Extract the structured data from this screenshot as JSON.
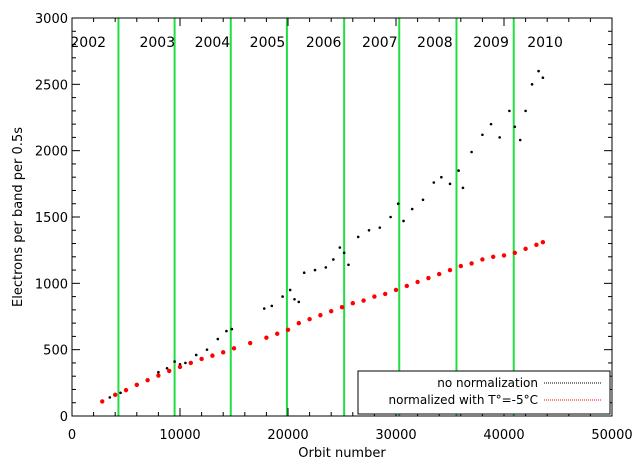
{
  "chart_data": {
    "type": "scatter",
    "xlabel": "Orbit number",
    "ylabel": "Electrons per band per 0.5s",
    "xlim": [
      0,
      50000
    ],
    "ylim": [
      0,
      3000
    ],
    "x_ticks": [
      0,
      10000,
      20000,
      30000,
      40000,
      50000
    ],
    "y_ticks": [
      0,
      500,
      1000,
      1500,
      2000,
      2500,
      3000
    ],
    "x_tick_labels": [
      "0",
      "10000",
      "20000",
      "30000",
      "40000",
      "50000"
    ],
    "y_tick_labels": [
      "0",
      "500",
      "1000",
      "1500",
      "2000",
      "2500",
      "3000"
    ],
    "grid": false,
    "legend_position": "bottom-right",
    "year_boundaries": [
      4300,
      9500,
      14700,
      19900,
      25200,
      30300,
      35600,
      40900
    ],
    "year_line_color": "#22dd44",
    "year_labels": [
      {
        "label": "2002",
        "x": 1500
      },
      {
        "label": "2003",
        "x": 7900
      },
      {
        "label": "2004",
        "x": 13000
      },
      {
        "label": "2005",
        "x": 18100
      },
      {
        "label": "2006",
        "x": 23300
      },
      {
        "label": "2007",
        "x": 28500
      },
      {
        "label": "2008",
        "x": 33600
      },
      {
        "label": "2009",
        "x": 38800
      },
      {
        "label": "2010",
        "x": 43800
      }
    ],
    "series": [
      {
        "name": "no normalization",
        "color": "#000000",
        "marker": "dot",
        "points": [
          [
            2800,
            110
          ],
          [
            3500,
            140
          ],
          [
            4000,
            165
          ],
          [
            4500,
            175
          ],
          [
            5000,
            190
          ],
          [
            6000,
            230
          ],
          [
            7000,
            270
          ],
          [
            8000,
            330
          ],
          [
            8800,
            360
          ],
          [
            9500,
            410
          ],
          [
            10000,
            390
          ],
          [
            10500,
            400
          ],
          [
            11500,
            460
          ],
          [
            12500,
            500
          ],
          [
            13500,
            580
          ],
          [
            14300,
            640
          ],
          [
            14800,
            655
          ],
          [
            17800,
            810
          ],
          [
            18500,
            830
          ],
          [
            19500,
            900
          ],
          [
            20200,
            950
          ],
          [
            20600,
            880
          ],
          [
            21000,
            860
          ],
          [
            21500,
            1080
          ],
          [
            22500,
            1100
          ],
          [
            23500,
            1120
          ],
          [
            24200,
            1180
          ],
          [
            24800,
            1270
          ],
          [
            25200,
            1230
          ],
          [
            25600,
            1140
          ],
          [
            26500,
            1350
          ],
          [
            27500,
            1400
          ],
          [
            28500,
            1420
          ],
          [
            29500,
            1500
          ],
          [
            30200,
            1600
          ],
          [
            30700,
            1470
          ],
          [
            31500,
            1560
          ],
          [
            32500,
            1630
          ],
          [
            33500,
            1760
          ],
          [
            34200,
            1800
          ],
          [
            35000,
            1750
          ],
          [
            35800,
            1850
          ],
          [
            36200,
            1720
          ],
          [
            37000,
            1990
          ],
          [
            38000,
            2120
          ],
          [
            38800,
            2200
          ],
          [
            39600,
            2100
          ],
          [
            40500,
            2300
          ],
          [
            41000,
            2180
          ],
          [
            41500,
            2080
          ],
          [
            42000,
            2300
          ],
          [
            42600,
            2500
          ],
          [
            43200,
            2600
          ],
          [
            43600,
            2550
          ]
        ]
      },
      {
        "name": "normalized with T°=-5°C",
        "color": "#ff0000",
        "marker": "dot",
        "points": [
          [
            2800,
            110
          ],
          [
            4000,
            160
          ],
          [
            5000,
            195
          ],
          [
            6000,
            235
          ],
          [
            7000,
            270
          ],
          [
            8000,
            305
          ],
          [
            9000,
            340
          ],
          [
            10000,
            370
          ],
          [
            11000,
            400
          ],
          [
            12000,
            430
          ],
          [
            13000,
            455
          ],
          [
            14000,
            480
          ],
          [
            15000,
            510
          ],
          [
            16500,
            550
          ],
          [
            18000,
            590
          ],
          [
            19000,
            620
          ],
          [
            20000,
            650
          ],
          [
            21000,
            700
          ],
          [
            22000,
            730
          ],
          [
            23000,
            760
          ],
          [
            24000,
            790
          ],
          [
            25000,
            820
          ],
          [
            26000,
            850
          ],
          [
            27000,
            870
          ],
          [
            28000,
            900
          ],
          [
            29000,
            920
          ],
          [
            30000,
            950
          ],
          [
            31000,
            980
          ],
          [
            32000,
            1010
          ],
          [
            33000,
            1040
          ],
          [
            34000,
            1070
          ],
          [
            35000,
            1100
          ],
          [
            36000,
            1130
          ],
          [
            37000,
            1150
          ],
          [
            38000,
            1180
          ],
          [
            39000,
            1200
          ],
          [
            40000,
            1210
          ],
          [
            41000,
            1230
          ],
          [
            42000,
            1260
          ],
          [
            43000,
            1290
          ],
          [
            43600,
            1310
          ]
        ]
      }
    ]
  }
}
